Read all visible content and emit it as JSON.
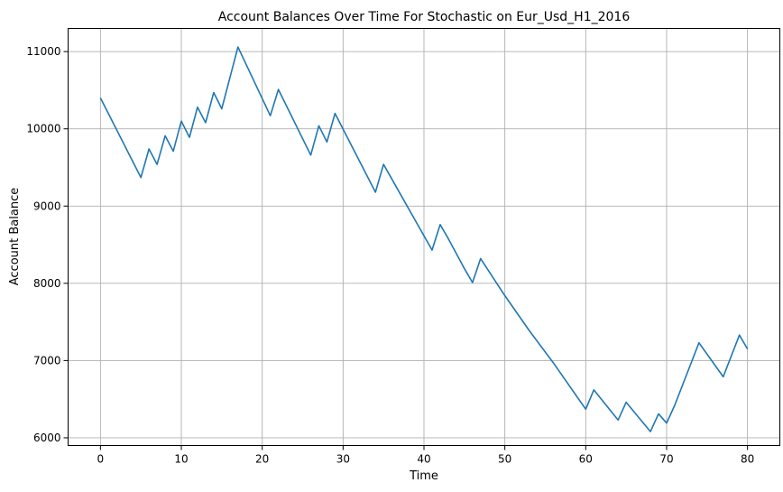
{
  "chart_data": {
    "type": "line",
    "title": "Account Balances Over Time For Stochastic on Eur_Usd_H1_2016",
    "xlabel": "Time",
    "ylabel": "Account Balance",
    "xlim": [
      -4,
      84
    ],
    "ylim": [
      5900,
      11300
    ],
    "xticks": [
      0,
      10,
      20,
      30,
      40,
      50,
      60,
      70,
      80
    ],
    "yticks": [
      6000,
      7000,
      8000,
      9000,
      10000,
      11000
    ],
    "grid": true,
    "series": [
      {
        "color": "#1f77b4",
        "x": [
          0,
          5,
          6,
          7,
          8,
          9,
          10,
          11,
          12,
          13,
          14,
          15,
          17,
          21,
          22,
          26,
          27,
          28,
          29,
          34,
          35,
          41,
          42,
          43,
          45,
          46,
          47,
          50,
          53,
          56,
          60,
          61,
          64,
          65,
          68,
          69,
          70,
          71,
          74,
          77,
          79,
          80
        ],
        "y": [
          10400,
          9370,
          9740,
          9540,
          9910,
          9710,
          10100,
          9890,
          10280,
          10080,
          10470,
          10260,
          11060,
          10170,
          10510,
          9660,
          10040,
          9830,
          10200,
          9180,
          9540,
          8430,
          8760,
          8580,
          8190,
          8010,
          8320,
          7840,
          7390,
          6970,
          6370,
          6620,
          6230,
          6460,
          6080,
          6310,
          6190,
          6420,
          7230,
          6790,
          7330,
          7150
        ]
      }
    ]
  }
}
